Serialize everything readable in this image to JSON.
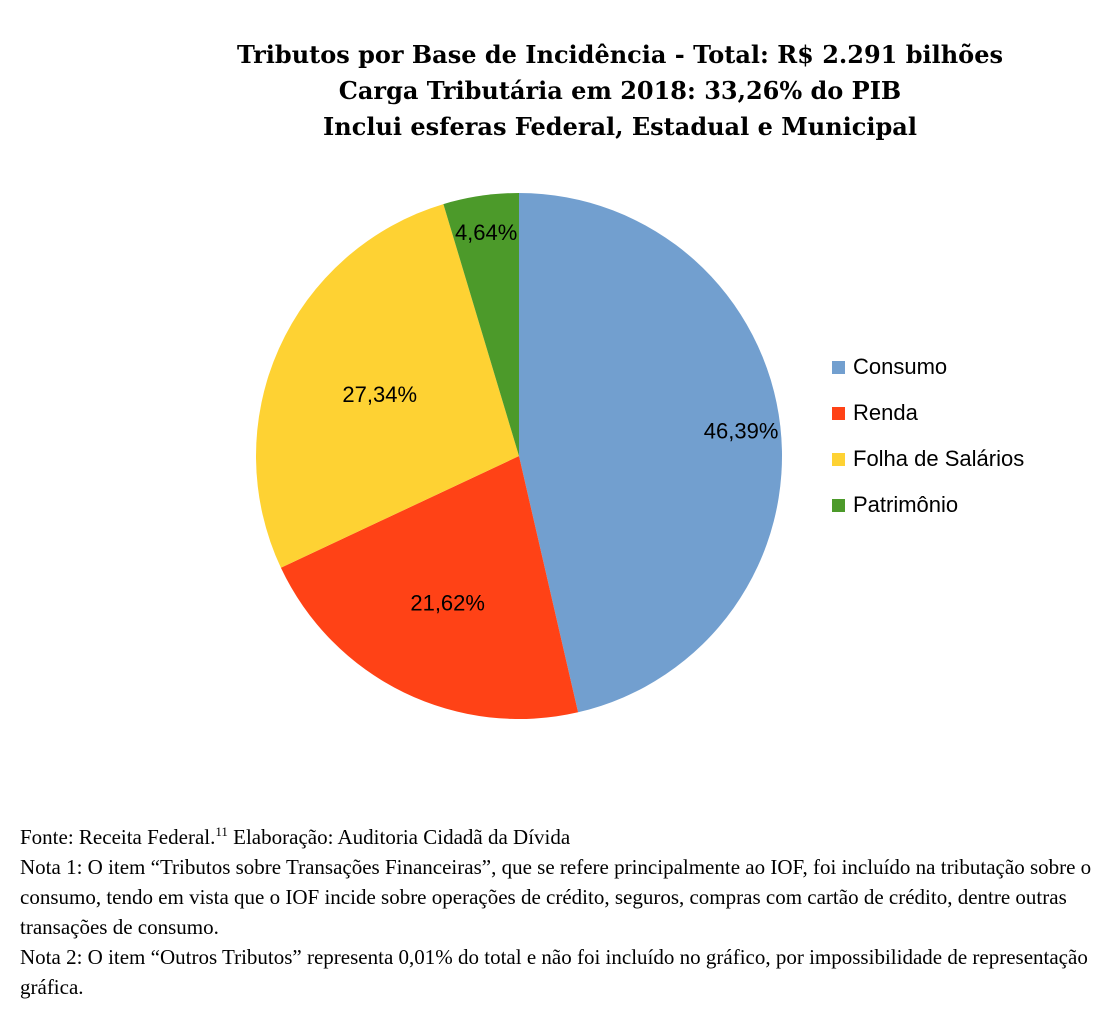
{
  "chart_data": {
    "type": "pie",
    "title_lines": [
      "Tributos por Base de Incidência - Total: R$ 2.291 bilhões",
      "Carga Tributária em 2018: 33,26% do PIB",
      "Inclui esferas Federal, Estadual e Municipal"
    ],
    "slices": [
      {
        "name": "Consumo",
        "value": 46.39,
        "label": "46,39%",
        "color": "#729FCF"
      },
      {
        "name": "Renda",
        "value": 21.62,
        "label": "21,62%",
        "color": "#FF4216"
      },
      {
        "name": "Folha de Salários",
        "value": 27.34,
        "label": "27,34%",
        "color": "#FED233"
      },
      {
        "name": "Patrimônio",
        "value": 4.64,
        "label": "4,64%",
        "color": "#4C9A2A"
      }
    ],
    "legend_position": "right"
  },
  "notes": {
    "source_prefix": "Fonte: Receita Federal.",
    "source_sup": "11",
    "source_suffix": " Elaboração: Auditoria Cidadã da Dívida",
    "note1": "Nota 1: O item “Tributos sobre Transações Financeiras”, que se refere principalmente ao IOF, foi incluído na tributação sobre o consumo, tendo em vista que o IOF incide sobre operações de crédito, seguros, compras com cartão de crédito, dentre outras transações de consumo.",
    "note2": "Nota 2: O item “Outros Tributos” representa 0,01% do total e não foi incluído no gráfico, por impossibilidade de representação gráfica."
  }
}
